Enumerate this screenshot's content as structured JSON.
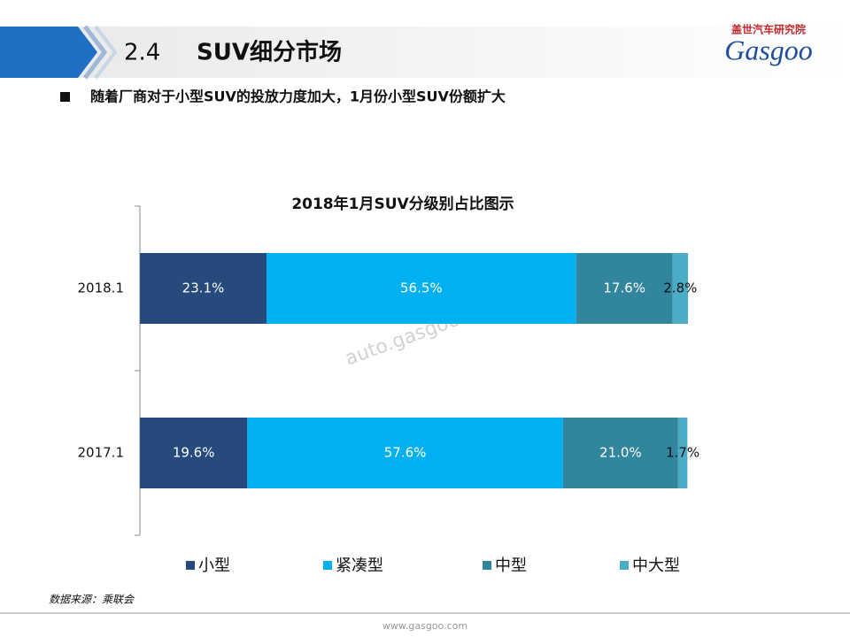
{
  "header": {
    "section": "2.4",
    "title": "SUV细分市场"
  },
  "logo": {
    "org": "盖世汽车研究院",
    "brand": "Gasgoo"
  },
  "bullet": "随着厂商对于小型SUV的投放力度加大，1月份小型SUV份额扩大",
  "watermark": "auto.gasgoo.com",
  "chart_data": {
    "type": "stacked-bar-horizontal",
    "title": "2018年1月SUV分级别占比图示",
    "categories": [
      "2018.1",
      "2017.1"
    ],
    "xlim": [
      0,
      100
    ],
    "legend": "bottom",
    "series": [
      {
        "name": "小型",
        "color": "#264a7c",
        "values": [
          23.1,
          19.6
        ],
        "value_labels": [
          "23.1%",
          "19.6%"
        ]
      },
      {
        "name": "紧凑型",
        "color": "#00b0f0",
        "values": [
          56.5,
          57.6
        ],
        "value_labels": [
          "56.5%",
          "57.6%"
        ]
      },
      {
        "name": "中型",
        "color": "#31859c",
        "values": [
          17.6,
          21.0
        ],
        "value_labels": [
          "17.6%",
          "21.0%"
        ]
      },
      {
        "name": "中大型",
        "color": "#4bacc6",
        "values": [
          2.8,
          1.7
        ],
        "value_labels": [
          "2.8%",
          "1.7%"
        ]
      }
    ]
  },
  "source": "数据来源：乘联会",
  "footer": "www.gasgoo.com"
}
